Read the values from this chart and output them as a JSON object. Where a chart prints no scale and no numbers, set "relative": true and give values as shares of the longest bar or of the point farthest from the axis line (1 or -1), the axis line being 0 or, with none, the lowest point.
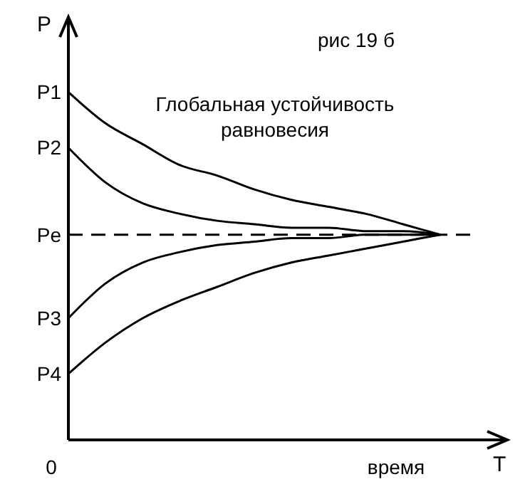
{
  "chart_data": {
    "type": "line",
    "title": "Глобальная устойчивость равновесия",
    "xlabel": "T",
    "ylabel": "P",
    "relative": true,
    "marker": "none",
    "line_style": "solid",
    "categories": [
      null,
      null,
      null,
      null,
      null,
      null,
      null,
      null,
      null,
      null,
      null
    ],
    "series": [
      {
        "color": "#000000",
        "values": [
          1.0,
          0.91,
          0.85,
          0.79,
          0.76,
          0.72,
          0.69,
          0.67,
          0.65,
          0.62,
          0.59
        ]
      },
      {
        "color": "#000000",
        "values": [
          0.84,
          0.74,
          0.68,
          0.65,
          0.63,
          0.62,
          0.61,
          0.61,
          0.6,
          0.6,
          0.59
        ]
      },
      {
        "color": "#000000",
        "values": [
          0.35,
          0.45,
          0.51,
          0.54,
          0.56,
          0.57,
          0.58,
          0.58,
          0.59,
          0.59,
          0.59
        ]
      },
      {
        "color": "#000000",
        "values": [
          0.19,
          0.28,
          0.35,
          0.4,
          0.44,
          0.48,
          0.51,
          0.53,
          0.55,
          0.57,
          0.59
        ]
      }
    ],
    "ref_lines": [
      {
        "axis": "y",
        "value": 0.59,
        "label": "Pe",
        "color": "#000000",
        "line_style": "dashed"
      }
    ],
    "annotations": [
      "рис 19 б",
      "время",
      "0",
      "P1",
      "P2",
      "P3",
      "P4"
    ]
  }
}
